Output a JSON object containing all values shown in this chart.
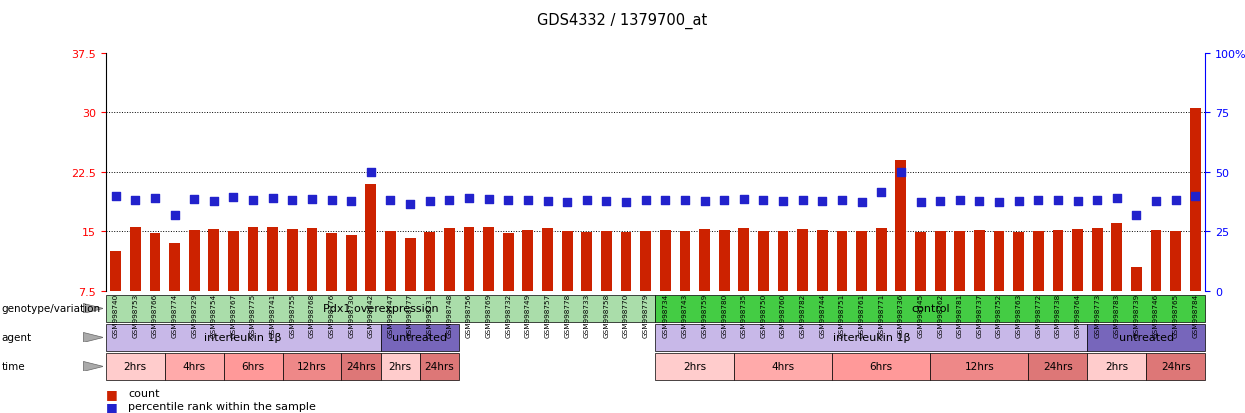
{
  "title": "GDS4332 / 1379700_at",
  "ylim_left": [
    7.5,
    37.5
  ],
  "ylim_right": [
    0,
    100
  ],
  "yticks_left": [
    7.5,
    15,
    22.5,
    30,
    37.5
  ],
  "yticks_right": [
    0,
    25,
    50,
    75,
    100
  ],
  "ytick_labels_left": [
    "7.5",
    "15",
    "22.5",
    "30",
    "37.5"
  ],
  "ytick_labels_right": [
    "0",
    "25",
    "50",
    "75",
    "100%"
  ],
  "samples": [
    "GSM998740",
    "GSM998753",
    "GSM998766",
    "GSM998774",
    "GSM998729",
    "GSM998754",
    "GSM998767",
    "GSM998775",
    "GSM998741",
    "GSM998755",
    "GSM998768",
    "GSM998776",
    "GSM998730",
    "GSM998742",
    "GSM998747",
    "GSM998777",
    "GSM998731",
    "GSM998748",
    "GSM998756",
    "GSM998769",
    "GSM998732",
    "GSM998749",
    "GSM998757",
    "GSM998778",
    "GSM998733",
    "GSM998758",
    "GSM998770",
    "GSM998779",
    "GSM998734",
    "GSM998743",
    "GSM998759",
    "GSM998780",
    "GSM998735",
    "GSM998750",
    "GSM998760",
    "GSM998782",
    "GSM998744",
    "GSM998751",
    "GSM998761",
    "GSM998771",
    "GSM998736",
    "GSM998745",
    "GSM998762",
    "GSM998781",
    "GSM998737",
    "GSM998752",
    "GSM998763",
    "GSM998772",
    "GSM998738",
    "GSM998764",
    "GSM998773",
    "GSM998783",
    "GSM998739",
    "GSM998746",
    "GSM998765",
    "GSM998784"
  ],
  "bar_heights": [
    12.5,
    15.5,
    14.8,
    13.5,
    15.2,
    15.3,
    15.1,
    15.6,
    15.5,
    15.3,
    15.4,
    14.8,
    14.5,
    21.0,
    15.1,
    14.2,
    14.9,
    15.4,
    15.6,
    15.5,
    14.8,
    15.2,
    15.4,
    15.1,
    14.9,
    15.1,
    14.9,
    15.0,
    15.2,
    15.1,
    15.3,
    15.2,
    15.4,
    15.1,
    15.0,
    15.3,
    15.2,
    15.1,
    15.0,
    15.4,
    24.0,
    14.9,
    15.0,
    15.1,
    15.2,
    15.0,
    14.9,
    15.1,
    15.2,
    15.3,
    15.4,
    16.0,
    10.5,
    15.2,
    15.1,
    30.5
  ],
  "blue_dot_heights": [
    19.5,
    19.0,
    19.2,
    17.0,
    19.1,
    18.8,
    19.3,
    19.0,
    19.2,
    18.9,
    19.1,
    19.0,
    18.8,
    22.5,
    18.9,
    18.5,
    18.8,
    19.0,
    19.2,
    19.1,
    18.9,
    19.0,
    18.8,
    18.7,
    18.9,
    18.8,
    18.7,
    18.9,
    19.0,
    18.9,
    18.8,
    19.0,
    19.1,
    18.9,
    18.8,
    19.0,
    18.8,
    18.9,
    18.7,
    20.0,
    22.5,
    18.7,
    18.8,
    18.9,
    18.8,
    18.7,
    18.8,
    19.0,
    18.9,
    18.8,
    18.9,
    19.2,
    17.0,
    18.8,
    18.9,
    19.5
  ],
  "bar_color": "#cc2200",
  "dot_color": "#2222cc",
  "bg_color": "#ffffff",
  "groups": [
    {
      "label": "Pdx1 overexpression",
      "start": 0,
      "end": 28,
      "color": "#aaddaa"
    },
    {
      "label": "control",
      "start": 28,
      "end": 56,
      "color": "#44cc44"
    }
  ],
  "agents_data": [
    {
      "label": "interleukin 1β",
      "start": 0,
      "end": 14,
      "color": "#c8b8e8"
    },
    {
      "label": "untreated",
      "start": 14,
      "end": 18,
      "color": "#7766bb"
    },
    {
      "label": "interleukin 1β",
      "start": 28,
      "end": 50,
      "color": "#c8b8e8"
    },
    {
      "label": "untreated",
      "start": 50,
      "end": 56,
      "color": "#7766bb"
    }
  ],
  "times_data": [
    {
      "label": "2hrs",
      "start": 0,
      "end": 3,
      "color": "#ffcccc"
    },
    {
      "label": "4hrs",
      "start": 3,
      "end": 6,
      "color": "#ffaaaa"
    },
    {
      "label": "6hrs",
      "start": 6,
      "end": 9,
      "color": "#ff9999"
    },
    {
      "label": "12hrs",
      "start": 9,
      "end": 12,
      "color": "#ee8888"
    },
    {
      "label": "24hrs",
      "start": 12,
      "end": 14,
      "color": "#dd7777"
    },
    {
      "label": "2hrs",
      "start": 14,
      "end": 16,
      "color": "#ffcccc"
    },
    {
      "label": "24hrs",
      "start": 16,
      "end": 18,
      "color": "#dd7777"
    },
    {
      "label": "2hrs",
      "start": 28,
      "end": 32,
      "color": "#ffcccc"
    },
    {
      "label": "4hrs",
      "start": 32,
      "end": 37,
      "color": "#ffaaaa"
    },
    {
      "label": "6hrs",
      "start": 37,
      "end": 42,
      "color": "#ff9999"
    },
    {
      "label": "12hrs",
      "start": 42,
      "end": 47,
      "color": "#ee8888"
    },
    {
      "label": "24hrs",
      "start": 47,
      "end": 50,
      "color": "#dd7777"
    },
    {
      "label": "2hrs",
      "start": 50,
      "end": 53,
      "color": "#ffcccc"
    },
    {
      "label": "24hrs",
      "start": 53,
      "end": 56,
      "color": "#dd7777"
    }
  ],
  "row_labels": [
    "genotype/variation",
    "agent",
    "time"
  ],
  "legend_items": [
    {
      "label": "count",
      "color": "#cc2200"
    },
    {
      "label": "percentile rank within the sample",
      "color": "#2222cc"
    }
  ]
}
